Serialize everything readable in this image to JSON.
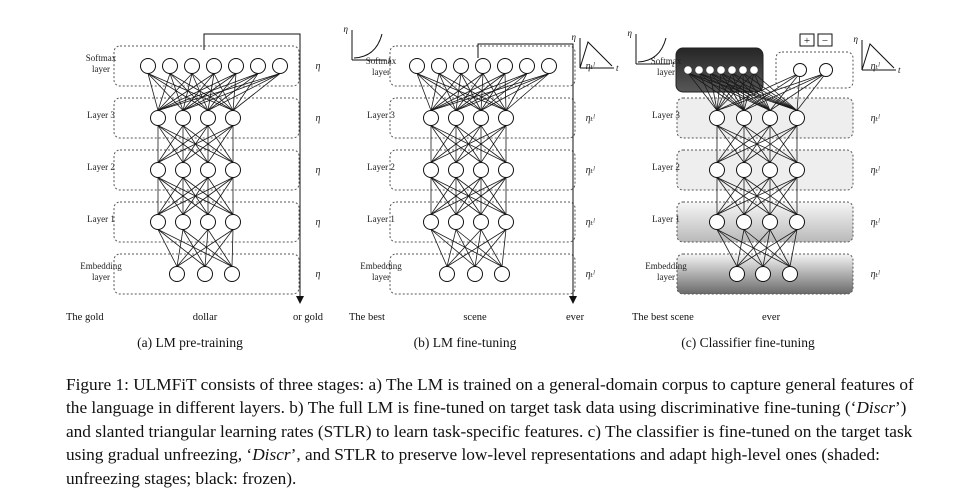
{
  "panels": [
    {
      "id": "a",
      "caption": "(a) LM pre-training",
      "layers": [
        "Softmax\nlayer",
        "Layer 3",
        "Layer 2",
        "Layer 1",
        "Embedding\nlayer"
      ],
      "rate_labels": [
        "η",
        "η",
        "η",
        "η",
        "η"
      ],
      "words": [
        "The gold",
        "dollar",
        "or  gold"
      ]
    },
    {
      "id": "b",
      "caption": "(b) LM fine-tuning",
      "layers": [
        "Softmax\nlayer",
        "Layer 3",
        "Layer 2",
        "Layer 1",
        "Embedding\nlayer"
      ],
      "rate_labels": [
        "ηₜˡ",
        "ηₜˡ",
        "ηₜˡ",
        "ηₜˡ",
        "ηₜˡ"
      ],
      "words": [
        "The best",
        "scene",
        "ever"
      ],
      "inset_axis": {
        "y": "η",
        "x": "t"
      }
    },
    {
      "id": "c",
      "caption": "(c) Classifier fine-tuning",
      "layers": [
        "Softmax\nlayer",
        "Layer 3",
        "Layer 2",
        "Layer 1",
        "Embedding\nlayer"
      ],
      "rate_labels": [
        "ηₜˡ",
        "ηₜˡ",
        "ηₜˡ",
        "ηₜˡ",
        "ηₜˡ"
      ],
      "words": [
        "The best scene",
        "ever"
      ],
      "inset_axis": {
        "y": "η",
        "x": "t"
      },
      "classifier_labels": [
        "+",
        "−"
      ]
    }
  ],
  "figure_caption": {
    "lead": "Figure 1: ULMFiT consists of three stages: a) The LM is trained on a general-domain corpus to capture general features of the language in different layers. b) The full LM is fine-tuned on target task data using discriminative fine-tuning (‘",
    "discr1": "Discr",
    "mid": "’) and slanted triangular learning rates (STLR) to learn task-specific features. c) The classifier is fine-tuned on the target task using gradual unfreezing, ‘",
    "discr2": "Discr",
    "tail": "’, and STLR to preserve low-level representations and adapt high-level ones (shaded: unfreezing stages; black: frozen)."
  }
}
